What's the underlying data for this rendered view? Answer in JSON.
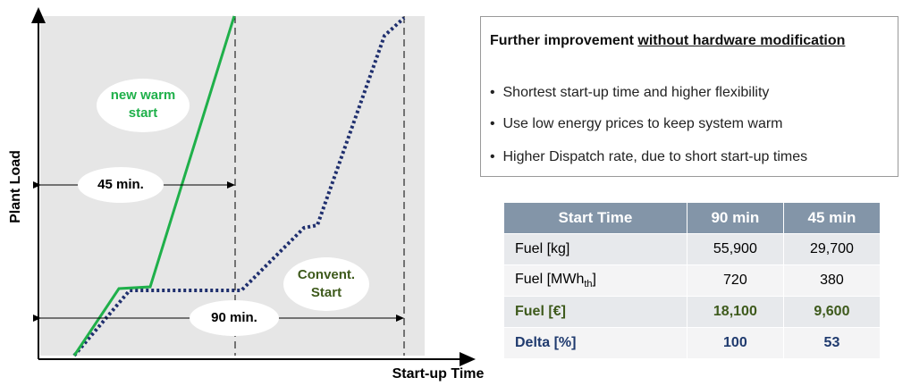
{
  "diagram": {
    "labels": {
      "new_warm_start": "new warm start",
      "convent_start": "Convent. Start",
      "duration_45": "45 min.",
      "duration_90": "90 min.",
      "y_axis": "Plant Load",
      "x_axis": "Start-up Time"
    }
  },
  "box": {
    "title": "Further improvement",
    "title_underlined": "without hardware modification",
    "bullets": [
      "Shortest start-up time and higher flexibility",
      "Use low energy prices to keep system warm",
      "Higher Dispatch rate, due to short start-up times"
    ]
  },
  "table": {
    "header": [
      "Start Time",
      "90 min",
      "45 min"
    ],
    "rows": [
      [
        {
          "text": "Fuel [kg]"
        },
        "55,900",
        "29,700"
      ],
      [
        {
          "text": "Fuel [MWh",
          "sub": "th",
          "suffix": "]"
        },
        "720",
        "380"
      ],
      [
        {
          "text": "Fuel [€]"
        },
        "18,100",
        "9,600"
      ],
      [
        {
          "text": "Delta [%]"
        },
        "100",
        "53"
      ]
    ]
  }
}
